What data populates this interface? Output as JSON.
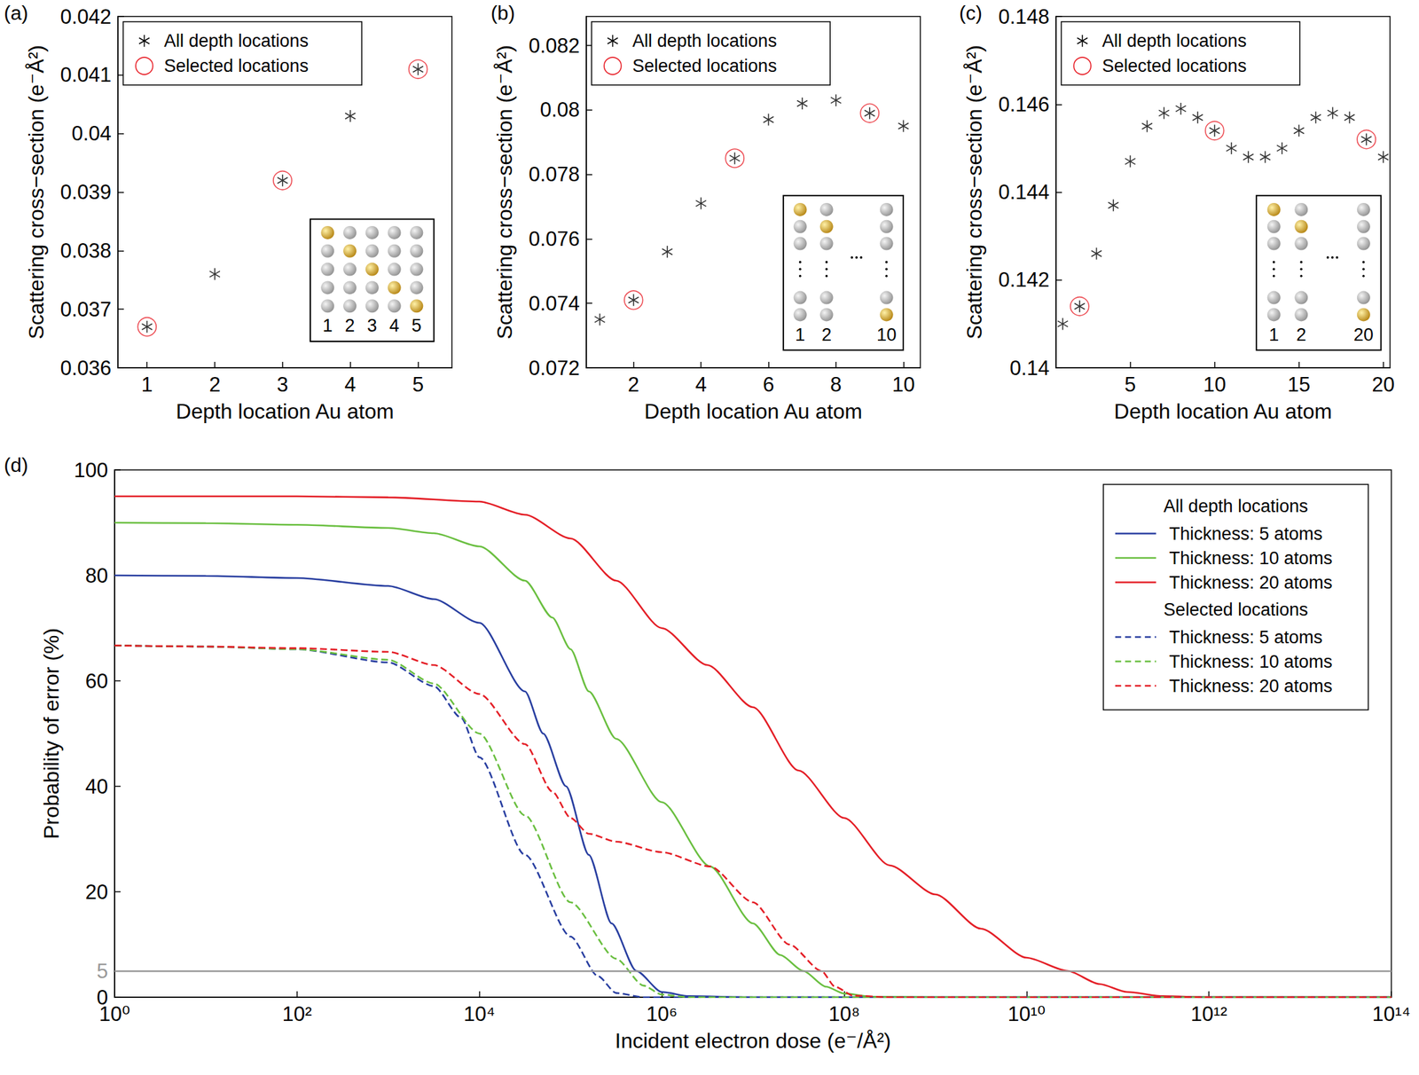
{
  "chart_data": [
    {
      "type": "scatter",
      "panel_label": "(a)",
      "x_label": "Depth location Au atom",
      "y_label": "Scattering cross−section (e⁻Å²)",
      "xlim": [
        0.57,
        5.5
      ],
      "xticks": [
        1,
        2,
        3,
        4,
        5
      ],
      "ylim": [
        0.036,
        0.042
      ],
      "yticks": [
        0.036,
        0.037,
        0.038,
        0.039,
        0.04,
        0.041,
        0.042
      ],
      "legend": "upper left",
      "grid": false,
      "series": [
        {
          "name": "All depth locations",
          "marker": "asterisk",
          "color": "#000000",
          "x": [
            1,
            2,
            3,
            4,
            5
          ],
          "values": [
            0.0367,
            0.0376,
            0.0392,
            0.0403,
            0.0411
          ]
        },
        {
          "name": "Selected locations",
          "marker": "circle",
          "color": "#e8222a",
          "x": [
            1,
            3,
            5
          ],
          "values": [
            0.0367,
            0.0392,
            0.0411
          ]
        }
      ],
      "inset": {
        "labels": [
          1,
          2,
          3,
          4,
          5
        ]
      }
    },
    {
      "type": "scatter",
      "panel_label": "(b)",
      "x_label": "Depth location Au atom",
      "y_label": "Scattering cross−section (e⁻Å²)",
      "xlim": [
        0.6,
        10.5
      ],
      "xticks": [
        2,
        4,
        6,
        8,
        10
      ],
      "ylim": [
        0.072,
        0.0829
      ],
      "yticks": [
        0.072,
        0.074,
        0.076,
        0.078,
        0.08,
        0.082
      ],
      "legend": "upper left",
      "grid": false,
      "series": [
        {
          "name": "All depth locations",
          "marker": "asterisk",
          "color": "#000000",
          "x": [
            1,
            2,
            3,
            4,
            5,
            6,
            7,
            8,
            9,
            10
          ],
          "values": [
            0.0735,
            0.0741,
            0.0756,
            0.0771,
            0.0785,
            0.0797,
            0.0802,
            0.0803,
            0.0799,
            0.0795
          ]
        },
        {
          "name": "Selected locations",
          "marker": "circle",
          "color": "#e8222a",
          "x": [
            2,
            5,
            9
          ],
          "values": [
            0.0741,
            0.0785,
            0.0799
          ]
        }
      ],
      "inset": {
        "labels": [
          1,
          2,
          10
        ]
      }
    },
    {
      "type": "scatter",
      "panel_label": "(c)",
      "x_label": "Depth location Au atom",
      "y_label": "Scattering cross−section (e⁻Å²)",
      "xlim": [
        0.6,
        20.4
      ],
      "xticks": [
        5,
        10,
        15,
        20
      ],
      "ylim": [
        0.14,
        0.148
      ],
      "yticks": [
        0.14,
        0.142,
        0.144,
        0.146,
        0.148
      ],
      "legend": "upper left",
      "grid": false,
      "series": [
        {
          "name": "All depth locations",
          "marker": "asterisk",
          "color": "#000000",
          "x": [
            1,
            2,
            3,
            4,
            5,
            6,
            7,
            8,
            9,
            10,
            11,
            12,
            13,
            14,
            15,
            16,
            17,
            18,
            19,
            20
          ],
          "values": [
            0.141,
            0.1414,
            0.1426,
            0.1437,
            0.1447,
            0.1455,
            0.1458,
            0.1459,
            0.1457,
            0.1454,
            0.145,
            0.1448,
            0.1448,
            0.145,
            0.1454,
            0.1457,
            0.1458,
            0.1457,
            0.1452,
            0.1448
          ]
        },
        {
          "name": "Selected locations",
          "marker": "circle",
          "color": "#e8222a",
          "x": [
            2,
            10,
            19
          ],
          "values": [
            0.1414,
            0.1454,
            0.1452
          ]
        }
      ],
      "inset": {
        "labels": [
          1,
          2,
          20
        ]
      }
    },
    {
      "type": "line",
      "panel_label": "(d)",
      "x_label": "Incident electron dose (e⁻/Å²)",
      "y_label": "Probability of error (%)",
      "log": "x",
      "xlim": [
        1,
        100000000000000.0
      ],
      "xticks": [
        {
          "value": 1,
          "label": "10⁰"
        },
        {
          "value": 100,
          "label": "10²"
        },
        {
          "value": 10000,
          "label": "10⁴"
        },
        {
          "value": 1000000,
          "label": "10⁶"
        },
        {
          "value": 100000000,
          "label": "10⁸"
        },
        {
          "value": 10000000000,
          "label": "10¹⁰"
        },
        {
          "value": 1000000000000,
          "label": "10¹²"
        },
        {
          "value": 100000000000000,
          "label": "10¹⁴"
        }
      ],
      "ylim": [
        0,
        100
      ],
      "yticks": [
        0,
        20,
        40,
        60,
        80,
        100
      ],
      "grid": false,
      "annotations": [
        {
          "type": "hline",
          "y": 5,
          "label": "5",
          "color": "#999999"
        }
      ],
      "legend": "upper right",
      "legend_groups": [
        "All depth locations",
        "Selected locations"
      ],
      "series": [
        {
          "name": "Thickness: 5 atoms",
          "group": "All depth locations",
          "color": "#283ea0",
          "line_style": "solid",
          "x": [
            1,
            10,
            100,
            1000,
            3162,
            10000,
            31620,
            50120,
            89130,
            158500,
            281800,
            524800,
            1000000,
            1995000,
            10000000,
            100000000000000.0
          ],
          "values": [
            80,
            79.9,
            79.5,
            78,
            75.5,
            71,
            58,
            50,
            40,
            27,
            14,
            5,
            1,
            0.2,
            0,
            0
          ]
        },
        {
          "name": "Thickness: 10 atoms",
          "group": "All depth locations",
          "color": "#6abf40",
          "line_style": "solid",
          "x": [
            1,
            10,
            100,
            1000,
            3162,
            10000,
            31620,
            63100,
            100000,
            158500,
            316200,
            1000000,
            3388000,
            10000000,
            19950000,
            35480000,
            63100000,
            100000000,
            199500000,
            1000000000,
            100000000000000.0
          ],
          "values": [
            90,
            89.9,
            89.6,
            89,
            88,
            85.5,
            79,
            72,
            66,
            58,
            49,
            37,
            24.8,
            14,
            8,
            5,
            2,
            0.7,
            0.1,
            0,
            0
          ]
        },
        {
          "name": "Thickness: 20 atoms",
          "group": "All depth locations",
          "color": "#e41e26",
          "line_style": "solid",
          "x": [
            1,
            10,
            100,
            1000,
            10000,
            31620,
            100000,
            316200,
            1000000,
            3162000,
            10000000,
            31620000,
            100000000,
            316200000,
            1000000000,
            3162000000,
            10000000000,
            28180000000,
            63100000000,
            125900000000,
            316200000000,
            1000000000000,
            100000000000000.0
          ],
          "values": [
            95,
            95,
            95,
            94.8,
            94,
            91.5,
            87,
            79,
            70,
            63,
            55,
            43,
            34,
            25,
            19.5,
            13,
            7.5,
            5,
            2.5,
            1,
            0.2,
            0,
            0
          ]
        },
        {
          "name": "Thickness: 5 atoms",
          "group": "Selected locations",
          "color": "#283ea0",
          "line_style": "dashed",
          "x": [
            1,
            10,
            100,
            1000,
            3162,
            6310,
            10000,
            31620,
            100000,
            199500,
            316200,
            631000,
            100000000000000.0
          ],
          "values": [
            66.7,
            66.5,
            66,
            63.5,
            59,
            53,
            45.5,
            27,
            11.5,
            4,
            0.8,
            0,
            0
          ]
        },
        {
          "name": "Thickness: 10 atoms",
          "group": "Selected locations",
          "color": "#6abf40",
          "line_style": "dashed",
          "x": [
            1,
            10,
            100,
            1000,
            3162,
            10000,
            31620,
            100000,
            316200,
            631000,
            1000000,
            1995000,
            100000000000000.0
          ],
          "values": [
            66.7,
            66.5,
            66,
            64,
            59.5,
            50,
            34.5,
            18,
            7.3,
            2.2,
            0.5,
            0,
            0
          ]
        },
        {
          "name": "Thickness: 20 atoms",
          "group": "Selected locations",
          "color": "#e41e26",
          "line_style": "dashed",
          "x": [
            1,
            10,
            100,
            1000,
            3162,
            10000,
            31620,
            63100,
            100000,
            158500,
            316200,
            1000000,
            3388000,
            10000000,
            25120000,
            56230000,
            79430000,
            125900000,
            316200000,
            100000000000000.0
          ],
          "values": [
            66.7,
            66.5,
            66.2,
            65.5,
            63,
            57.5,
            48,
            39,
            34,
            31,
            29.5,
            27.5,
            24.8,
            18,
            10,
            5,
            2,
            0.3,
            0,
            0
          ]
        }
      ]
    }
  ]
}
